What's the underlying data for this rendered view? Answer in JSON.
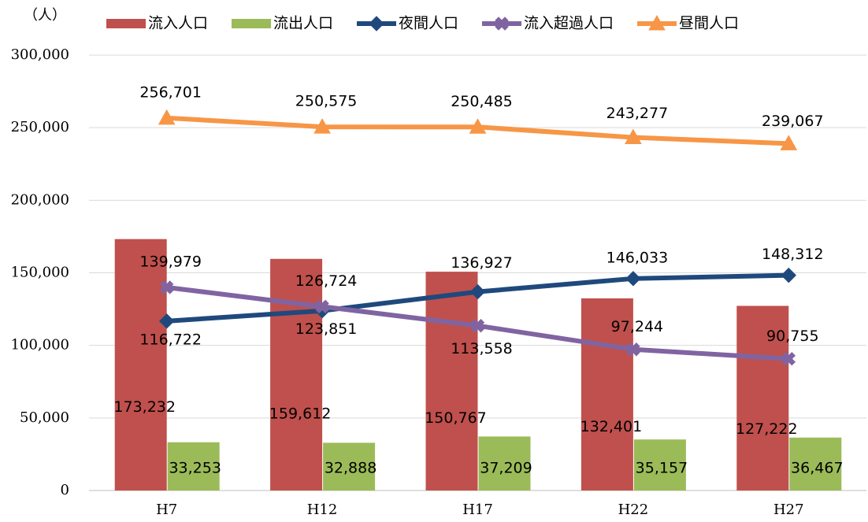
{
  "chart_data": {
    "type": "bar_line",
    "y_label": "（人）",
    "categories": [
      "H7",
      "H12",
      "H17",
      "H22",
      "H27"
    ],
    "series": [
      {
        "name": "流入人口",
        "kind": "bar",
        "color": "#c0504d",
        "values": [
          173232,
          159612,
          150767,
          132401,
          127222
        ],
        "value_labels": [
          "173,232",
          "159,612",
          "150,767",
          "132,401",
          "127,222"
        ]
      },
      {
        "name": "流出人口",
        "kind": "bar",
        "color": "#9bbb59",
        "values": [
          33253,
          32888,
          37209,
          35157,
          36467
        ],
        "value_labels": [
          "33,253",
          "32,888",
          "37,209",
          "35,157",
          "36,467"
        ]
      },
      {
        "name": "夜間人口",
        "kind": "line",
        "marker": "diamond",
        "color": "#1f497d",
        "values": [
          116722,
          123851,
          136927,
          146033,
          148312
        ],
        "value_labels": [
          "116,722",
          "123,851",
          "136,927",
          "146,033",
          "148,312"
        ]
      },
      {
        "name": "流入超過人口",
        "kind": "line",
        "marker": "x",
        "color": "#8064a2",
        "values": [
          139979,
          126724,
          113558,
          97244,
          90755
        ],
        "value_labels": [
          "139,979",
          "126,724",
          "113,558",
          "97,244",
          "90,755"
        ]
      },
      {
        "name": "昼間人口",
        "kind": "line",
        "marker": "triangle",
        "color": "#f79646",
        "values": [
          256701,
          250575,
          250485,
          243277,
          239067
        ],
        "value_labels": [
          "256,701",
          "250,575",
          "250,485",
          "243,277",
          "239,067"
        ]
      }
    ],
    "ylim": [
      0,
      300000
    ],
    "yticks": [
      0,
      {
        "value": 50000,
        "label": "50,000"
      },
      {
        "value": 100000,
        "label": "100,000"
      },
      {
        "value": 150000,
        "label": "150,000"
      },
      {
        "value": 200000,
        "label": "200,000"
      },
      {
        "value": 250000,
        "label": "250,000"
      },
      {
        "value": 300000,
        "label": "300,000"
      }
    ],
    "grid": true
  }
}
